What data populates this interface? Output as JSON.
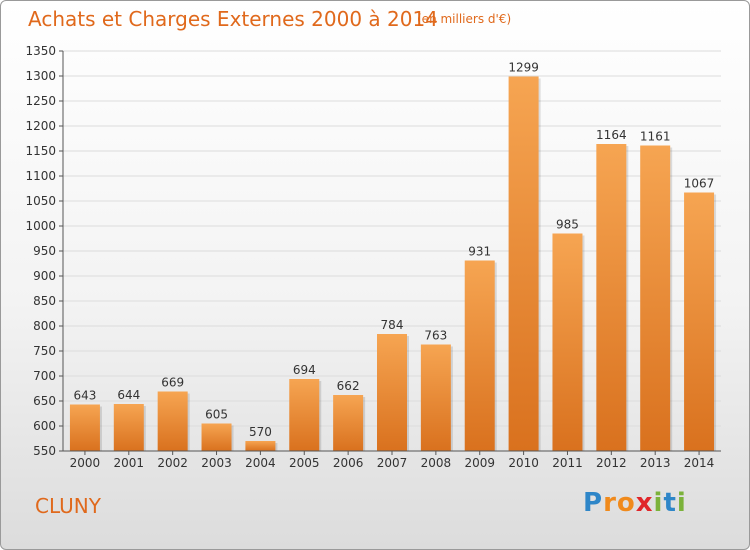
{
  "title": "Achats et Charges Externes 2000 à 2014",
  "subtitle": "(en milliers d'€)",
  "city": "CLUNY",
  "logo": {
    "letters": [
      "P",
      "r",
      "o",
      "x",
      "i",
      "t",
      "i"
    ],
    "colors": [
      "#2e86c8",
      "#f08a1c",
      "#f08a1c",
      "#e0262a",
      "#7bb23a",
      "#2e86c8",
      "#7bb23a"
    ]
  },
  "colors": {
    "bar_light": "#f6a552",
    "bar_dark": "#d9711e",
    "title": "#e0691c",
    "axis": "#555555",
    "grid": "#dcdcdc"
  },
  "chart_data": {
    "type": "bar",
    "categories": [
      "2000",
      "2001",
      "2002",
      "2003",
      "2004",
      "2005",
      "2006",
      "2007",
      "2008",
      "2009",
      "2010",
      "2011",
      "2012",
      "2013",
      "2014"
    ],
    "values": [
      643,
      644,
      669,
      605,
      570,
      694,
      662,
      784,
      763,
      931,
      1299,
      985,
      1164,
      1161,
      1067
    ],
    "title": "Achats et Charges Externes 2000 à 2014",
    "xlabel": "",
    "ylabel": "",
    "ylim": [
      550,
      1350
    ],
    "yticks": [
      550,
      600,
      650,
      700,
      750,
      800,
      850,
      900,
      950,
      1000,
      1050,
      1100,
      1150,
      1200,
      1250,
      1300,
      1350
    ],
    "grid": true
  }
}
